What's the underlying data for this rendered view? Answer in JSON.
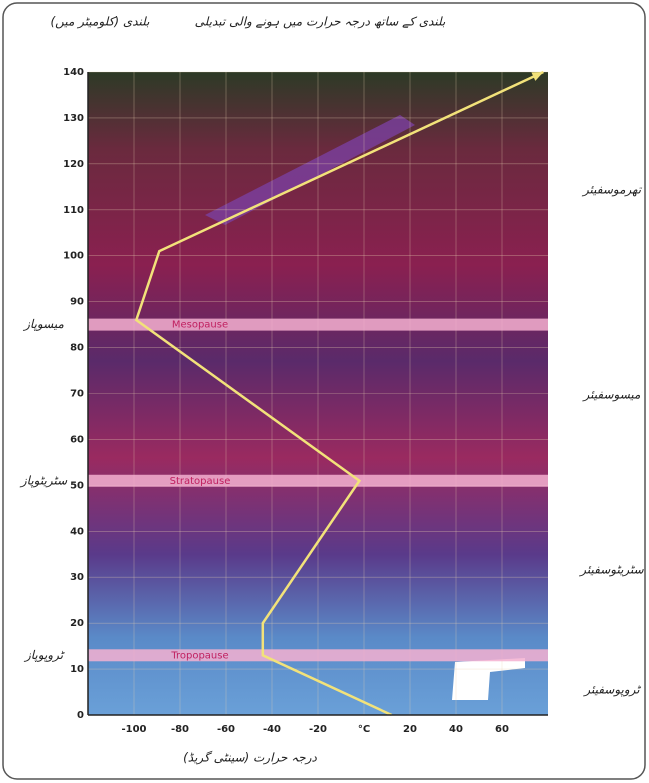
{
  "chart_data": {
    "type": "line",
    "title": "بلندی کے ساتھ درجہ حرارت میں ہونے والی تبدیلی",
    "y_label": "بلندی (کلومیٹر میں)",
    "x_label": "درجہ حرارت (سینٹی گریڈ)",
    "x": [
      12,
      -44,
      -44,
      -2,
      -99,
      -89,
      78
    ],
    "values": [
      0,
      13,
      20,
      51,
      86,
      101,
      140
    ],
    "color": "#f2e27a",
    "xlim": [
      -120,
      80
    ],
    "xticks": [
      -100,
      -80,
      -60,
      -40,
      -20,
      {
        "value": 0,
        "label": "°C"
      },
      20,
      40,
      60
    ],
    "ylim": [
      0,
      140
    ],
    "yticks": [
      0,
      10,
      20,
      30,
      40,
      50,
      60,
      70,
      80,
      90,
      100,
      110,
      120,
      130,
      140
    ],
    "grid": true,
    "pauses": [
      {
        "label": "Mesopause",
        "side_label": "میسوپاز",
        "altitude": 85
      },
      {
        "label": "Stratopause",
        "side_label": "سٹریٹوپاز",
        "altitude": 51
      },
      {
        "label": "Tropopause",
        "side_label": "ٹروپوپاز",
        "altitude": 13
      }
    ],
    "layers": [
      "تھرموسفیئر",
      "میسوسفیئر",
      "سٹریٹوسفیئر",
      "ٹروپوسفیئر"
    ]
  }
}
